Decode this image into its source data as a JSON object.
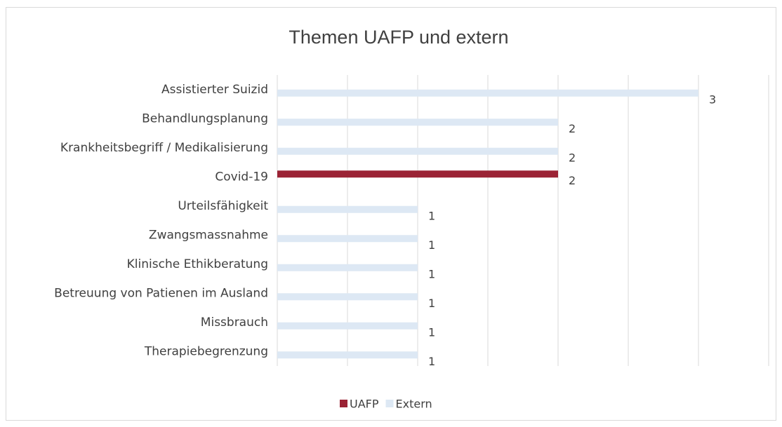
{
  "chart_data": {
    "type": "bar",
    "orientation": "horizontal",
    "title": "Themen UAFP und extern",
    "categories": [
      "Assistierter Suizid",
      "Behandlungsplanung",
      "Krankheitsbegriff / Medikalisierung",
      "Covid-19",
      "Urteilsfähigkeit",
      "Zwangsmassnahme",
      "Klinische Ethikberatung",
      "Betreuung von Patienen im Ausland",
      "Missbrauch",
      "Therapiebegrenzung"
    ],
    "series": [
      {
        "name": "UAFP",
        "color": "#9b2335",
        "values": [
          null,
          null,
          null,
          2,
          null,
          null,
          null,
          null,
          null,
          null
        ]
      },
      {
        "name": "Extern",
        "color": "#dde8f4",
        "values": [
          3,
          2,
          2,
          null,
          1,
          1,
          1,
          1,
          1,
          1
        ]
      }
    ],
    "xlim": [
      0,
      3.5
    ],
    "xticks": [
      0,
      0.5,
      1,
      1.5,
      2,
      2.5,
      3,
      3.5
    ],
    "grid": true,
    "legend": "bottom"
  }
}
